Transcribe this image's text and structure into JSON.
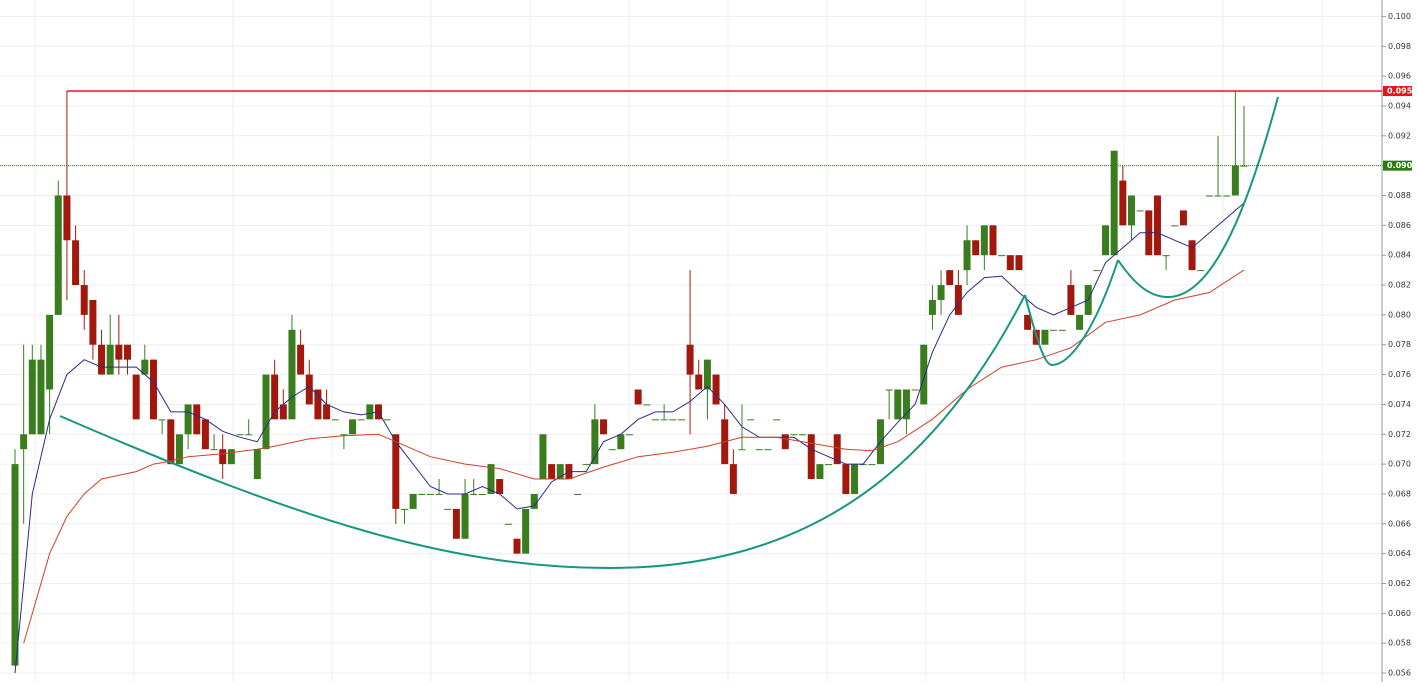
{
  "chart_data": {
    "type": "candlestick",
    "up_color": "#3a7d1e",
    "down_color": "#a3180d",
    "ylim": [
      0.0554,
      0.1011
    ],
    "yticks": [
      0.056,
      0.058,
      {
        "value": 0.06,
        "label": "0.060"
      },
      0.062,
      0.064,
      0.066,
      0.068,
      {
        "value": 0.07,
        "label": "0.070"
      },
      0.072,
      0.074,
      0.076,
      0.078,
      {
        "value": 0.08,
        "label": "0.080"
      },
      0.082,
      0.084,
      0.086,
      0.088,
      {
        "value": 0.09,
        "label": "0.090"
      },
      0.092,
      0.094,
      0.096,
      0.098,
      {
        "value": 0.1,
        "label": "0.100"
      }
    ],
    "grid": true,
    "hlines": [
      {
        "value": 0.095,
        "color": "#e8141b"
      },
      {
        "value": 0.09,
        "label": "0.090",
        "color": "#2e7a18"
      }
    ],
    "candles": [
      [
        0.0565,
        0.071,
        0.0565,
        0.07
      ],
      [
        0.071,
        0.078,
        0.066,
        0.072
      ],
      [
        0.072,
        0.078,
        0.072,
        0.077
      ],
      [
        0.072,
        0.078,
        0.072,
        0.077
      ],
      [
        0.075,
        0.08,
        0.072,
        0.08
      ],
      [
        0.08,
        0.089,
        0.08,
        0.088
      ],
      [
        0.088,
        0.095,
        0.081,
        0.085
      ],
      [
        0.085,
        0.086,
        0.082,
        0.082
      ],
      [
        0.082,
        0.083,
        0.079,
        0.08
      ],
      [
        0.081,
        0.081,
        0.077,
        0.078
      ],
      [
        0.078,
        0.079,
        0.076,
        0.076
      ],
      [
        0.076,
        0.08,
        0.076,
        0.078
      ],
      [
        0.078,
        0.08,
        0.076,
        0.077
      ],
      [
        0.078,
        0.078,
        0.076,
        0.077
      ],
      [
        0.076,
        0.076,
        0.073,
        0.073
      ],
      [
        0.076,
        0.078,
        0.076,
        0.077
      ],
      [
        0.077,
        0.077,
        0.073,
        0.073
      ],
      [
        0.073,
        0.073,
        0.072,
        0.073
      ],
      [
        0.073,
        0.073,
        0.07,
        0.07
      ],
      [
        0.07,
        0.072,
        0.07,
        0.072
      ],
      [
        0.072,
        0.074,
        0.071,
        0.074
      ],
      [
        0.074,
        0.074,
        0.072,
        0.072
      ],
      [
        0.073,
        0.073,
        0.071,
        0.071
      ],
      [
        0.071,
        0.072,
        0.071,
        0.071
      ],
      [
        0.071,
        0.072,
        0.069,
        0.07
      ],
      [
        0.07,
        0.071,
        0.07,
        0.071
      ],
      [
        0.072,
        0.072,
        0.072,
        0.072
      ],
      [
        0.072,
        0.073,
        0.072,
        0.072
      ],
      [
        0.069,
        0.071,
        0.069,
        0.071
      ],
      [
        0.071,
        0.076,
        0.071,
        0.076
      ],
      [
        0.076,
        0.077,
        0.073,
        0.073
      ],
      [
        0.074,
        0.075,
        0.073,
        0.073
      ],
      [
        0.073,
        0.08,
        0.073,
        0.079
      ],
      [
        0.078,
        0.079,
        0.076,
        0.076
      ],
      [
        0.076,
        0.077,
        0.074,
        0.074
      ],
      [
        0.075,
        0.075,
        0.073,
        0.073
      ],
      [
        0.074,
        0.075,
        0.073,
        0.073
      ],
      [
        0.073,
        0.073,
        0.073,
        0.073
      ],
      [
        0.072,
        0.072,
        0.071,
        0.072
      ],
      [
        0.072,
        0.073,
        0.072,
        0.073
      ],
      [
        0.073,
        0.073,
        0.073,
        0.073
      ],
      [
        0.073,
        0.074,
        0.073,
        0.074
      ],
      [
        0.074,
        0.074,
        0.073,
        0.073
      ],
      [
        0.073,
        0.073,
        0.073,
        0.073
      ],
      [
        0.072,
        0.072,
        0.066,
        0.067
      ],
      [
        0.067,
        0.067,
        0.066,
        0.067
      ],
      [
        0.067,
        0.068,
        0.067,
        0.068
      ],
      [
        0.068,
        0.068,
        0.068,
        0.068
      ],
      [
        0.068,
        0.068,
        0.068,
        0.068
      ],
      [
        0.068,
        0.069,
        0.068,
        0.068
      ],
      [
        0.067,
        0.067,
        0.067,
        0.067
      ],
      [
        0.067,
        0.067,
        0.065,
        0.065
      ],
      [
        0.065,
        0.069,
        0.065,
        0.068
      ],
      [
        0.068,
        0.069,
        0.068,
        0.068
      ],
      [
        0.068,
        0.068,
        0.068,
        0.068
      ],
      [
        0.068,
        0.07,
        0.068,
        0.07
      ],
      [
        0.069,
        0.069,
        0.068,
        0.068
      ],
      [
        0.066,
        0.066,
        0.066,
        0.066
      ],
      [
        0.065,
        0.065,
        0.064,
        0.064
      ],
      [
        0.064,
        0.067,
        0.064,
        0.067
      ],
      [
        0.067,
        0.068,
        0.067,
        0.068
      ],
      [
        0.069,
        0.072,
        0.069,
        0.072
      ],
      [
        0.07,
        0.07,
        0.069,
        0.069
      ],
      [
        0.069,
        0.07,
        0.069,
        0.07
      ],
      [
        0.07,
        0.07,
        0.069,
        0.069
      ],
      [
        0.068,
        0.068,
        0.068,
        0.068
      ],
      [
        0.07,
        0.07,
        0.07,
        0.07
      ],
      [
        0.07,
        0.074,
        0.07,
        0.073
      ],
      [
        0.073,
        0.073,
        0.072,
        0.072
      ],
      [
        0.071,
        0.071,
        0.071,
        0.071
      ],
      [
        0.071,
        0.072,
        0.071,
        0.072
      ],
      [
        0.072,
        0.072,
        0.072,
        0.072
      ],
      [
        0.075,
        0.075,
        0.074,
        0.074
      ],
      [
        0.074,
        0.074,
        0.074,
        0.074
      ],
      [
        0.073,
        0.073,
        0.073,
        0.073
      ],
      [
        0.073,
        0.074,
        0.073,
        0.073
      ],
      [
        0.073,
        0.073,
        0.073,
        0.073
      ],
      [
        0.073,
        0.073,
        0.073,
        0.073
      ],
      [
        0.078,
        0.083,
        0.072,
        0.076
      ],
      [
        0.076,
        0.077,
        0.075,
        0.075
      ],
      [
        0.075,
        0.077,
        0.073,
        0.077
      ],
      [
        0.076,
        0.076,
        0.074,
        0.074
      ],
      [
        0.073,
        0.074,
        0.07,
        0.07
      ],
      [
        0.07,
        0.071,
        0.068,
        0.068
      ],
      [
        0.071,
        0.074,
        0.071,
        0.071
      ],
      [
        0.073,
        0.073,
        0.073,
        0.073
      ],
      [
        0.071,
        0.071,
        0.071,
        0.071
      ],
      [
        0.071,
        0.071,
        0.071,
        0.071
      ],
      [
        0.073,
        0.073,
        0.073,
        0.073
      ],
      [
        0.072,
        0.072,
        0.071,
        0.071
      ],
      [
        0.072,
        0.072,
        0.072,
        0.072
      ],
      [
        0.072,
        0.072,
        0.072,
        0.072
      ],
      [
        0.072,
        0.072,
        0.069,
        0.069
      ],
      [
        0.069,
        0.07,
        0.069,
        0.07
      ],
      [
        0.07,
        0.07,
        0.07,
        0.07
      ],
      [
        0.072,
        0.072,
        0.07,
        0.07
      ],
      [
        0.07,
        0.07,
        0.068,
        0.068
      ],
      [
        0.068,
        0.07,
        0.068,
        0.07
      ],
      [
        0.07,
        0.07,
        0.07,
        0.07
      ],
      [
        0.07,
        0.07,
        0.07,
        0.07
      ],
      [
        0.07,
        0.073,
        0.07,
        0.073
      ],
      [
        0.075,
        0.075,
        0.073,
        0.075
      ],
      [
        0.073,
        0.075,
        0.073,
        0.075
      ],
      [
        0.073,
        0.075,
        0.072,
        0.075
      ],
      [
        0.075,
        0.075,
        0.075,
        0.075
      ],
      [
        0.074,
        0.078,
        0.074,
        0.078
      ],
      [
        0.08,
        0.082,
        0.079,
        0.081
      ],
      [
        0.081,
        0.083,
        0.08,
        0.082
      ],
      [
        0.083,
        0.083,
        0.082,
        0.082
      ],
      [
        0.082,
        0.083,
        0.08,
        0.08
      ],
      [
        0.083,
        0.086,
        0.082,
        0.085
      ],
      [
        0.085,
        0.085,
        0.084,
        0.084
      ],
      [
        0.084,
        0.086,
        0.083,
        0.086
      ],
      [
        0.086,
        0.086,
        0.084,
        0.084
      ],
      [
        0.084,
        0.084,
        0.084,
        0.084
      ],
      [
        0.084,
        0.084,
        0.083,
        0.083
      ],
      [
        0.084,
        0.084,
        0.083,
        0.083
      ],
      [
        0.08,
        0.08,
        0.079,
        0.079
      ],
      [
        0.079,
        0.079,
        0.078,
        0.078
      ],
      [
        0.078,
        0.079,
        0.078,
        0.079
      ],
      [
        0.079,
        0.079,
        0.079,
        0.079
      ],
      [
        0.079,
        0.079,
        0.079,
        0.079
      ],
      [
        0.082,
        0.083,
        0.08,
        0.08
      ],
      [
        0.079,
        0.08,
        0.079,
        0.08
      ],
      [
        0.08,
        0.082,
        0.08,
        0.082
      ],
      [
        0.083,
        0.083,
        0.083,
        0.083
      ],
      [
        0.084,
        0.086,
        0.084,
        0.086
      ],
      [
        0.084,
        0.091,
        0.084,
        0.091
      ],
      [
        0.089,
        0.09,
        0.086,
        0.086
      ],
      [
        0.086,
        0.088,
        0.085,
        0.088
      ],
      [
        0.087,
        0.087,
        0.087,
        0.087
      ],
      [
        0.087,
        0.087,
        0.084,
        0.084
      ],
      [
        0.088,
        0.088,
        0.084,
        0.084
      ],
      [
        0.084,
        0.084,
        0.083,
        0.084
      ],
      [
        0.086,
        0.086,
        0.086,
        0.086
      ],
      [
        0.087,
        0.087,
        0.086,
        0.086
      ],
      [
        0.085,
        0.085,
        0.083,
        0.083
      ],
      [
        0.083,
        0.083,
        0.083,
        0.083
      ],
      [
        0.088,
        0.088,
        0.088,
        0.088
      ],
      [
        0.088,
        0.092,
        0.088,
        0.088
      ],
      [
        0.088,
        0.088,
        0.088,
        0.088
      ],
      [
        0.088,
        0.095,
        0.088,
        0.09
      ],
      [
        0.09,
        0.094,
        0.09,
        0.09
      ]
    ],
    "lines": [
      {
        "color": "#2b2b8c",
        "x": [
          0,
          1,
          2,
          4,
          6,
          8,
          10,
          12,
          14,
          16,
          18,
          20,
          22,
          24,
          26,
          28,
          30,
          32,
          34,
          36,
          38,
          40,
          42,
          44,
          46,
          48,
          50,
          52,
          54,
          56,
          58,
          60,
          62,
          64,
          66,
          68,
          70,
          72,
          74,
          76,
          78,
          80,
          82,
          84,
          86,
          88,
          90,
          92,
          94,
          96,
          98,
          100,
          102,
          104,
          106,
          108,
          110,
          112,
          114,
          116,
          118,
          120,
          122,
          124,
          126,
          128,
          130,
          132,
          134,
          136,
          138,
          140,
          142
        ],
        "values": [
          0.056,
          0.062,
          0.068,
          0.073,
          0.076,
          0.077,
          0.0765,
          0.0765,
          0.0765,
          0.0755,
          0.0735,
          0.0735,
          0.073,
          0.0722,
          0.0718,
          0.0715,
          0.0735,
          0.0745,
          0.0752,
          0.074,
          0.0735,
          0.0733,
          0.0735,
          0.0715,
          0.07,
          0.0685,
          0.068,
          0.068,
          0.0685,
          0.068,
          0.067,
          0.0672,
          0.0688,
          0.0695,
          0.0695,
          0.0715,
          0.072,
          0.073,
          0.0735,
          0.0735,
          0.0742,
          0.0752,
          0.074,
          0.0725,
          0.0718,
          0.0718,
          0.0718,
          0.071,
          0.0705,
          0.07,
          0.07,
          0.0715,
          0.0728,
          0.074,
          0.0775,
          0.08,
          0.0815,
          0.0825,
          0.0826,
          0.0815,
          0.0805,
          0.08,
          0.0805,
          0.081,
          0.0835,
          0.0845,
          0.0855,
          0.0855,
          0.085,
          0.0845,
          0.0855,
          0.0865,
          0.0875
        ]
      },
      {
        "color": "#d0412a",
        "x": [
          1,
          4,
          6,
          8,
          10,
          14,
          16,
          18,
          20,
          24,
          28,
          30,
          34,
          38,
          42,
          44,
          48,
          52,
          56,
          60,
          64,
          68,
          72,
          76,
          80,
          84,
          88,
          92,
          96,
          99,
          102,
          106,
          110,
          114,
          118,
          122,
          126,
          130,
          134,
          138,
          142
        ],
        "values": [
          0.058,
          0.064,
          0.0665,
          0.068,
          0.069,
          0.0695,
          0.07,
          0.0702,
          0.0705,
          0.0707,
          0.071,
          0.0712,
          0.0717,
          0.0719,
          0.072,
          0.0715,
          0.0705,
          0.07,
          0.0697,
          0.069,
          0.069,
          0.0698,
          0.0705,
          0.0708,
          0.0712,
          0.0718,
          0.0718,
          0.0714,
          0.071,
          0.0709,
          0.0715,
          0.073,
          0.075,
          0.0765,
          0.077,
          0.0778,
          0.0795,
          0.08,
          0.081,
          0.0815,
          0.083
        ]
      }
    ]
  }
}
